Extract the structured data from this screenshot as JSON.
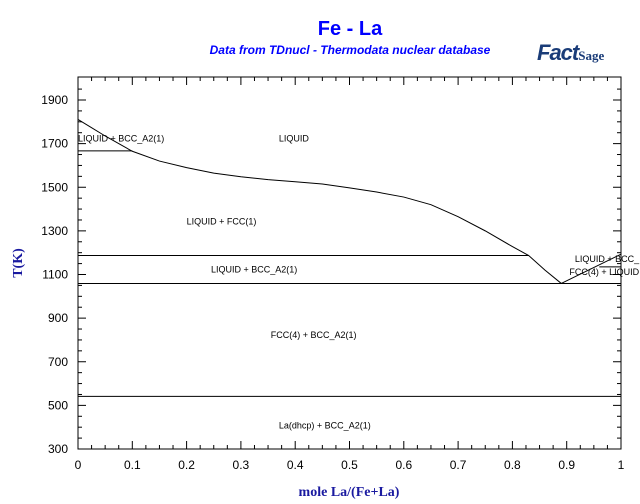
{
  "chart_data": {
    "type": "line",
    "title": "Fe - La",
    "subtitle": "Data from TDnucl - Thermodata nuclear database",
    "logo": "FactSage",
    "xlabel": "mole La/(Fe+La)",
    "ylabel": "T(K)",
    "xlim": [
      0,
      1
    ],
    "ylim": [
      300,
      1900
    ],
    "xticks": [
      "0",
      "0.1",
      "0.2",
      "0.3",
      "0.4",
      "0.5",
      "0.6",
      "0.7",
      "0.8",
      "0.9",
      "1"
    ],
    "yticks": [
      "300",
      "500",
      "700",
      "900",
      "1100",
      "1300",
      "1500",
      "1700",
      "1900"
    ],
    "grid": false,
    "series": [
      {
        "name": "liquidus-fe-side",
        "x": [
          0,
          0.05,
          0.1,
          0.15,
          0.2,
          0.25,
          0.3,
          0.35,
          0.4,
          0.45,
          0.5,
          0.55,
          0.6,
          0.65,
          0.7,
          0.75,
          0.8,
          0.83,
          0.86,
          0.89
        ],
        "y": [
          1811,
          1735,
          1665,
          1620,
          1590,
          1565,
          1548,
          1535,
          1525,
          1515,
          1497,
          1478,
          1455,
          1420,
          1365,
          1300,
          1228,
          1187,
          1120,
          1059
        ]
      },
      {
        "name": "liquidus-la-side",
        "x": [
          0.89,
          1
        ],
        "y": [
          1059,
          1193
        ]
      },
      {
        "name": "peritectic-bcc",
        "x": [
          0,
          0.1
        ],
        "y": [
          1667,
          1667
        ]
      },
      {
        "name": "peritectic-fcc",
        "x": [
          0,
          0.83
        ],
        "y": [
          1187,
          1187
        ]
      },
      {
        "name": "eutectic",
        "x": [
          0,
          1
        ],
        "y": [
          1059,
          1059
        ]
      },
      {
        "name": "la-transition",
        "x": [
          0.96,
          1
        ],
        "y": [
          1135,
          1135
        ]
      },
      {
        "name": "lower-invariant",
        "x": [
          0,
          1
        ],
        "y": [
          541,
          541
        ]
      }
    ],
    "annotations": [
      {
        "text": "LIQUID + BCC_A2(1)",
        "x": 0.0,
        "y": 1710
      },
      {
        "text": "LIQUID",
        "x": 0.37,
        "y": 1710
      },
      {
        "text": "LIQUID + FCC(1)",
        "x": 0.2,
        "y": 1330
      },
      {
        "text": "LIQUID + BCC_A2(1)",
        "x": 0.245,
        "y": 1110
      },
      {
        "text": "LIQUID + BCC_",
        "x": 0.915,
        "y": 1157
      },
      {
        "text": "FCC(4) + LIQUID",
        "x": 0.905,
        "y": 1097
      },
      {
        "text": "FCC(4) + BCC_A2(1)",
        "x": 0.355,
        "y": 810
      },
      {
        "text": "La(dhcp) + BCC_A2(1)",
        "x": 0.37,
        "y": 393
      }
    ]
  }
}
